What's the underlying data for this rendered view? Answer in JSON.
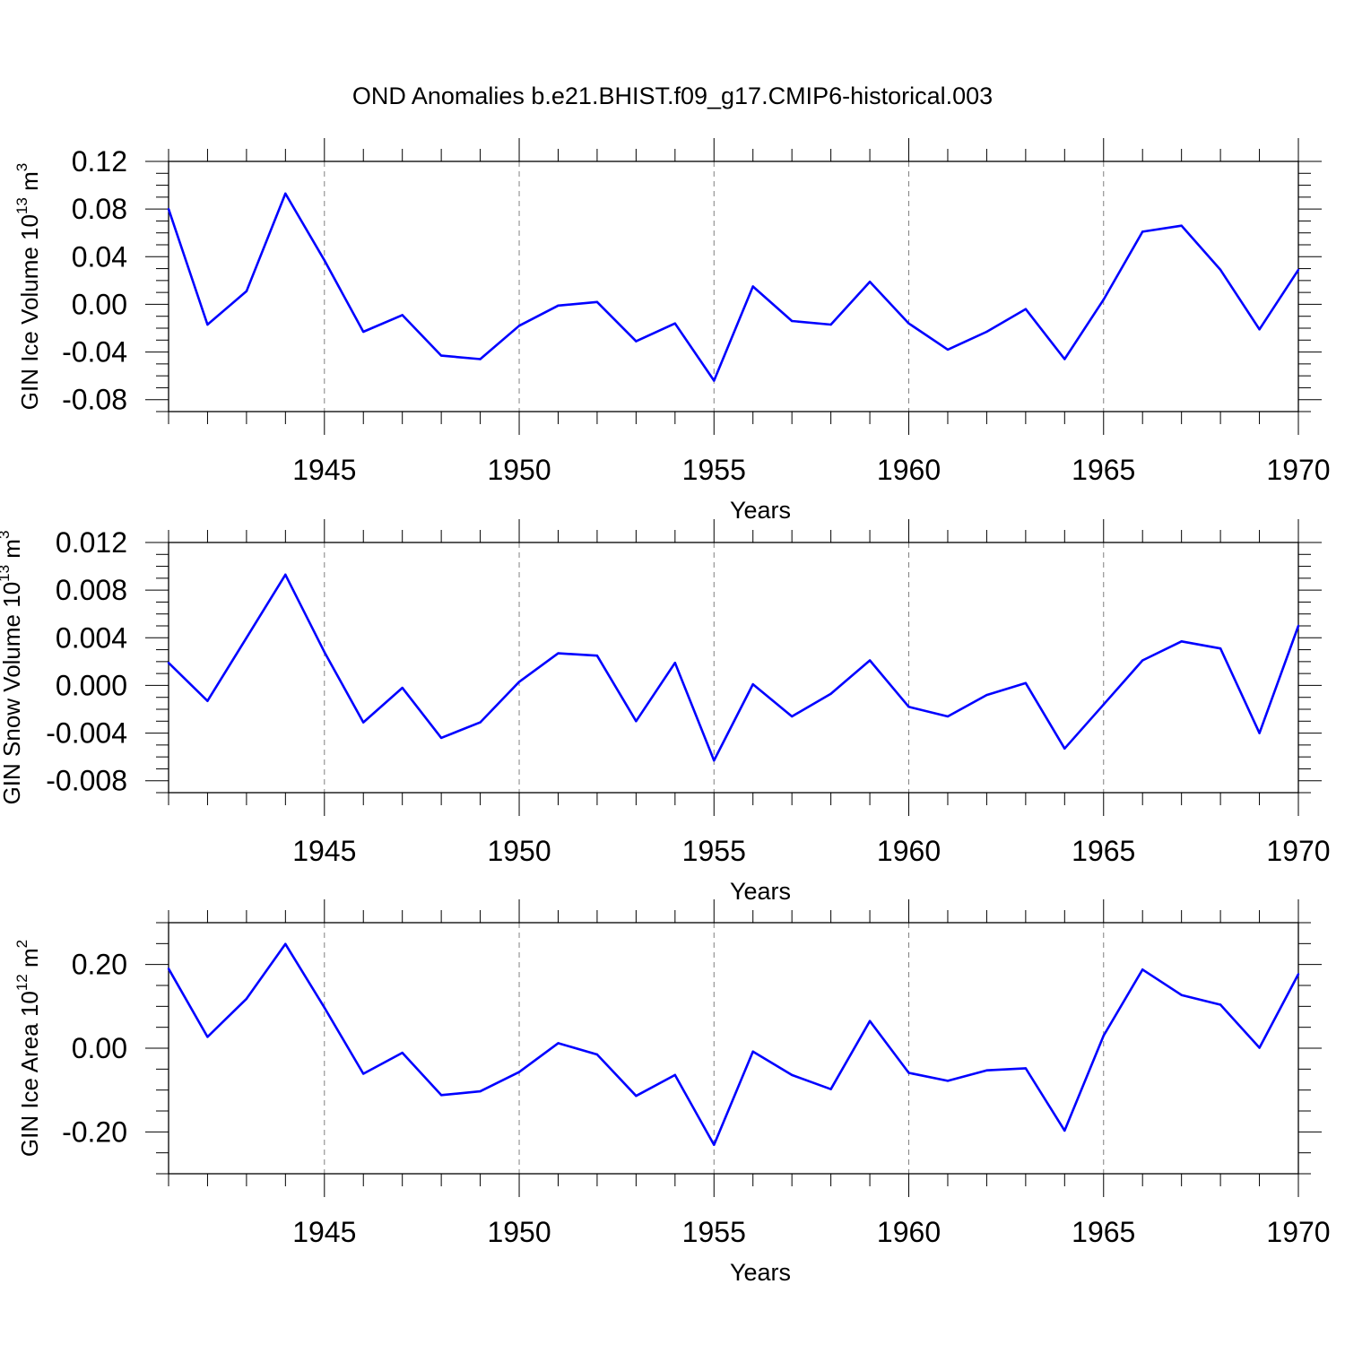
{
  "page": {
    "title": "OND Anomalies b.e21.BHIST.f09_g17.CMIP6-historical.003"
  },
  "colors": {
    "series": "#0000ff",
    "axis": "#000000",
    "grid": "#808080",
    "background": "#ffffff"
  },
  "chart_data": [
    {
      "type": "line",
      "xlabel": "Years",
      "ylabel": {
        "text": "GIN Ice Volume 10",
        "exponent": "13",
        "unit": " m",
        "unit_exponent": "3"
      },
      "xlim": [
        1941,
        1970
      ],
      "ylim": [
        -0.09,
        0.12
      ],
      "xticks": [
        1945,
        1950,
        1955,
        1960,
        1965,
        1970
      ],
      "xtick_labels": [
        "1945",
        "1950",
        "1955",
        "1960",
        "1965",
        "1970"
      ],
      "yticks": [
        -0.08,
        -0.04,
        0.0,
        0.04,
        0.08,
        0.12
      ],
      "ytick_labels": [
        "-0.08",
        "-0.04",
        "0.00",
        "0.04",
        "0.08",
        "0.12"
      ],
      "grid": "vertical dashed at major x ticks",
      "series": [
        {
          "name": "GIN Ice Volume",
          "x": [
            1941,
            1942,
            1943,
            1944,
            1945,
            1946,
            1947,
            1948,
            1949,
            1950,
            1951,
            1952,
            1953,
            1954,
            1955,
            1956,
            1957,
            1958,
            1959,
            1960,
            1961,
            1962,
            1963,
            1964,
            1965,
            1966,
            1967,
            1968,
            1969,
            1970
          ],
          "values": [
            0.08,
            -0.017,
            0.011,
            0.093,
            0.037,
            -0.023,
            -0.009,
            -0.043,
            -0.046,
            -0.018,
            -0.001,
            0.002,
            -0.031,
            -0.016,
            -0.064,
            0.015,
            -0.014,
            -0.017,
            0.019,
            -0.016,
            -0.038,
            -0.023,
            -0.004,
            -0.046,
            0.004,
            0.061,
            0.066,
            0.029,
            -0.021,
            0.029
          ]
        }
      ]
    },
    {
      "type": "line",
      "xlabel": "Years",
      "ylabel": {
        "text": "GIN Snow Volume 10",
        "exponent": "13",
        "unit": " m",
        "unit_exponent": "3"
      },
      "xlim": [
        1941,
        1970
      ],
      "ylim": [
        -0.009,
        0.012
      ],
      "xticks": [
        1945,
        1950,
        1955,
        1960,
        1965,
        1970
      ],
      "xtick_labels": [
        "1945",
        "1950",
        "1955",
        "1960",
        "1965",
        "1970"
      ],
      "yticks": [
        -0.008,
        -0.004,
        0.0,
        0.004,
        0.008,
        0.012
      ],
      "ytick_labels": [
        "-0.008",
        "-0.004",
        "0.000",
        "0.004",
        "0.008",
        "0.012"
      ],
      "grid": "vertical dashed at major x ticks",
      "series": [
        {
          "name": "GIN Snow Volume",
          "x": [
            1941,
            1942,
            1943,
            1944,
            1945,
            1946,
            1947,
            1948,
            1949,
            1950,
            1951,
            1952,
            1953,
            1954,
            1955,
            1956,
            1957,
            1958,
            1959,
            1960,
            1961,
            1962,
            1963,
            1964,
            1965,
            1966,
            1967,
            1968,
            1969,
            1970
          ],
          "values": [
            0.0019,
            -0.0013,
            0.004,
            0.0093,
            0.0028,
            -0.0031,
            -0.0002,
            -0.0044,
            -0.0031,
            0.0003,
            0.0027,
            0.0025,
            -0.003,
            0.0019,
            -0.0063,
            0.0001,
            -0.0026,
            -0.0007,
            0.0021,
            -0.0018,
            -0.0026,
            -0.0008,
            0.0002,
            -0.0053,
            -0.0016,
            0.0021,
            0.0037,
            0.0031,
            -0.004,
            0.005
          ]
        }
      ]
    },
    {
      "type": "line",
      "xlabel": "Years",
      "ylabel": {
        "text": "GIN Ice Area 10",
        "exponent": "12",
        "unit": " m",
        "unit_exponent": "2"
      },
      "xlim": [
        1941,
        1970
      ],
      "ylim": [
        -0.3,
        0.3
      ],
      "xticks": [
        1945,
        1950,
        1955,
        1960,
        1965,
        1970
      ],
      "xtick_labels": [
        "1945",
        "1950",
        "1955",
        "1960",
        "1965",
        "1970"
      ],
      "yticks": [
        -0.2,
        0.0,
        0.2
      ],
      "ytick_labels": [
        "-0.20",
        "0.00",
        "0.20"
      ],
      "grid": "vertical dashed at major x ticks",
      "series": [
        {
          "name": "GIN Ice Area",
          "x": [
            1941,
            1942,
            1943,
            1944,
            1945,
            1946,
            1947,
            1948,
            1949,
            1950,
            1951,
            1952,
            1953,
            1954,
            1955,
            1956,
            1957,
            1958,
            1959,
            1960,
            1961,
            1962,
            1963,
            1964,
            1965,
            1966,
            1967,
            1968,
            1969,
            1970
          ],
          "values": [
            0.19,
            0.027,
            0.118,
            0.249,
            0.097,
            -0.061,
            -0.011,
            -0.112,
            -0.103,
            -0.057,
            0.012,
            -0.015,
            -0.114,
            -0.064,
            -0.231,
            -0.008,
            -0.064,
            -0.098,
            0.065,
            -0.059,
            -0.078,
            -0.053,
            -0.048,
            -0.197,
            0.03,
            0.188,
            0.127,
            0.104,
            0.001,
            0.177
          ]
        }
      ]
    }
  ]
}
